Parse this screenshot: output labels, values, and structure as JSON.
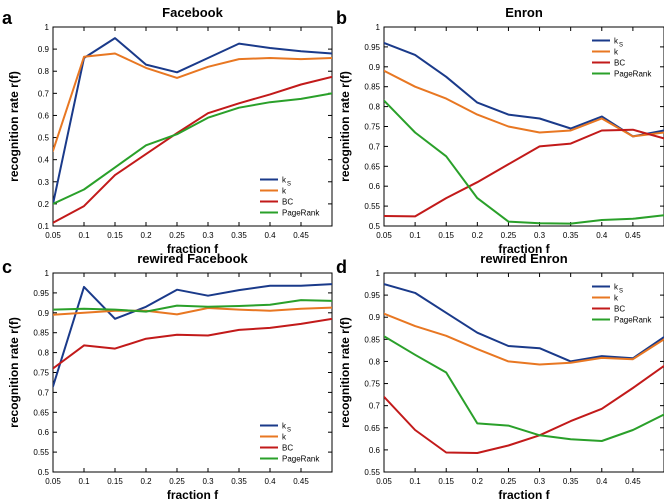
{
  "chart_data": [
    {
      "type": "line",
      "panel_letter": "a",
      "title": "Facebook",
      "xlabel": "fraction f",
      "ylabel": "recognition rate r(f)",
      "x": [
        0.05,
        0.1,
        0.15,
        0.2,
        0.25,
        0.3,
        0.35,
        0.4,
        0.45,
        0.5
      ],
      "xlim": [
        0.05,
        0.5
      ],
      "ylim": [
        0.1,
        1.0
      ],
      "xticks": [
        "0.05",
        "0.1",
        "0.15",
        "0.2",
        "0.25",
        "0.3",
        "0.35",
        "0.4",
        "0.45"
      ],
      "yticks": [
        "0.1",
        "0.2",
        "0.3",
        "0.4",
        "0.5",
        "0.6",
        "0.7",
        "0.8",
        "0.9",
        "1"
      ],
      "legend_position": "bottom-right",
      "series": [
        {
          "name": "k",
          "subscript": "S",
          "color": "#1a3a8a",
          "values": [
            0.2,
            0.86,
            0.95,
            0.83,
            0.795,
            0.86,
            0.925,
            0.905,
            0.89,
            0.88
          ]
        },
        {
          "name": "k",
          "subscript": "",
          "color": "#e87722",
          "values": [
            0.44,
            0.865,
            0.88,
            0.815,
            0.77,
            0.82,
            0.855,
            0.86,
            0.855,
            0.86
          ]
        },
        {
          "name": "BC",
          "subscript": "",
          "color": "#c21a1a",
          "values": [
            0.115,
            0.19,
            0.33,
            0.425,
            0.52,
            0.61,
            0.655,
            0.695,
            0.74,
            0.775
          ]
        },
        {
          "name": "PageRank",
          "subscript": "",
          "color": "#2aa02a",
          "values": [
            0.2,
            0.265,
            0.365,
            0.465,
            0.515,
            0.59,
            0.635,
            0.66,
            0.675,
            0.7
          ]
        }
      ]
    },
    {
      "type": "line",
      "panel_letter": "b",
      "title": "Enron",
      "xlabel": "fraction f",
      "ylabel": "recognition rate r(f)",
      "x": [
        0.05,
        0.1,
        0.15,
        0.2,
        0.25,
        0.3,
        0.35,
        0.4,
        0.45,
        0.5
      ],
      "xlim": [
        0.05,
        0.5
      ],
      "ylim": [
        0.5,
        1.0
      ],
      "xticks": [
        "0.05",
        "0.1",
        "0.15",
        "0.2",
        "0.25",
        "0.3",
        "0.35",
        "0.4",
        "0.45"
      ],
      "yticks": [
        "0.5",
        "0.55",
        "0.6",
        "0.65",
        "0.7",
        "0.75",
        "0.8",
        "0.85",
        "0.9",
        "0.95",
        "1"
      ],
      "legend_position": "top-right",
      "series": [
        {
          "name": "k",
          "subscript": "S",
          "color": "#1a3a8a",
          "values": [
            0.96,
            0.93,
            0.875,
            0.81,
            0.78,
            0.77,
            0.745,
            0.775,
            0.725,
            0.74
          ]
        },
        {
          "name": "k",
          "subscript": "",
          "color": "#e87722",
          "values": [
            0.89,
            0.85,
            0.82,
            0.78,
            0.75,
            0.735,
            0.74,
            0.77,
            0.725,
            0.735
          ]
        },
        {
          "name": "BC",
          "subscript": "",
          "color": "#c21a1a",
          "values": [
            0.525,
            0.524,
            0.57,
            0.61,
            0.655,
            0.7,
            0.707,
            0.74,
            0.742,
            0.72
          ]
        },
        {
          "name": "PageRank",
          "subscript": "",
          "color": "#2aa02a",
          "values": [
            0.815,
            0.735,
            0.675,
            0.57,
            0.511,
            0.507,
            0.506,
            0.515,
            0.518,
            0.527
          ]
        }
      ]
    },
    {
      "type": "line",
      "panel_letter": "c",
      "title": "rewired Facebook",
      "xlabel": "fraction f",
      "ylabel": "recognition rate r(f)",
      "x": [
        0.05,
        0.1,
        0.15,
        0.2,
        0.25,
        0.3,
        0.35,
        0.4,
        0.45,
        0.5
      ],
      "xlim": [
        0.05,
        0.5
      ],
      "ylim": [
        0.5,
        1.0
      ],
      "xticks": [
        "0.05",
        "0.1",
        "0.15",
        "0.2",
        "0.25",
        "0.3",
        "0.35",
        "0.4",
        "0.45"
      ],
      "yticks": [
        "0.5",
        "0.55",
        "0.6",
        "0.65",
        "0.7",
        "0.75",
        "0.8",
        "0.85",
        "0.9",
        "0.95",
        "1"
      ],
      "legend_position": "bottom-right",
      "series": [
        {
          "name": "k",
          "subscript": "S",
          "color": "#1a3a8a",
          "values": [
            0.715,
            0.965,
            0.885,
            0.915,
            0.958,
            0.943,
            0.957,
            0.968,
            0.968,
            0.972
          ]
        },
        {
          "name": "k",
          "subscript": "",
          "color": "#e87722",
          "values": [
            0.895,
            0.9,
            0.905,
            0.905,
            0.896,
            0.912,
            0.908,
            0.905,
            0.91,
            0.913
          ]
        },
        {
          "name": "BC",
          "subscript": "",
          "color": "#c21a1a",
          "values": [
            0.76,
            0.818,
            0.81,
            0.835,
            0.845,
            0.843,
            0.857,
            0.862,
            0.872,
            0.885
          ]
        },
        {
          "name": "PageRank",
          "subscript": "",
          "color": "#2aa02a",
          "values": [
            0.908,
            0.91,
            0.908,
            0.903,
            0.918,
            0.915,
            0.917,
            0.92,
            0.932,
            0.93
          ]
        }
      ]
    },
    {
      "type": "line",
      "panel_letter": "d",
      "title": "rewired Enron",
      "xlabel": "fraction f",
      "ylabel": "recognition rate r(f)",
      "x": [
        0.05,
        0.1,
        0.15,
        0.2,
        0.25,
        0.3,
        0.35,
        0.4,
        0.45,
        0.5
      ],
      "xlim": [
        0.05,
        0.5
      ],
      "ylim": [
        0.55,
        1.0
      ],
      "xticks": [
        "0.05",
        "0.1",
        "0.15",
        "0.2",
        "0.25",
        "0.3",
        "0.35",
        "0.4",
        "0.45"
      ],
      "yticks": [
        "0.55",
        "0.6",
        "0.65",
        "0.7",
        "0.75",
        "0.8",
        "0.85",
        "0.9",
        "0.95",
        "1"
      ],
      "legend_position": "top-right",
      "series": [
        {
          "name": "k",
          "subscript": "S",
          "color": "#1a3a8a",
          "values": [
            0.975,
            0.955,
            0.91,
            0.865,
            0.835,
            0.83,
            0.8,
            0.812,
            0.807,
            0.855
          ]
        },
        {
          "name": "k",
          "subscript": "",
          "color": "#e87722",
          "values": [
            0.908,
            0.88,
            0.858,
            0.828,
            0.8,
            0.793,
            0.797,
            0.808,
            0.805,
            0.85
          ]
        },
        {
          "name": "BC",
          "subscript": "",
          "color": "#c21a1a",
          "values": [
            0.72,
            0.645,
            0.594,
            0.593,
            0.61,
            0.633,
            0.665,
            0.693,
            0.74,
            0.79
          ]
        },
        {
          "name": "PageRank",
          "subscript": "",
          "color": "#2aa02a",
          "values": [
            0.857,
            0.815,
            0.775,
            0.66,
            0.655,
            0.633,
            0.624,
            0.62,
            0.645,
            0.68
          ]
        }
      ]
    }
  ]
}
